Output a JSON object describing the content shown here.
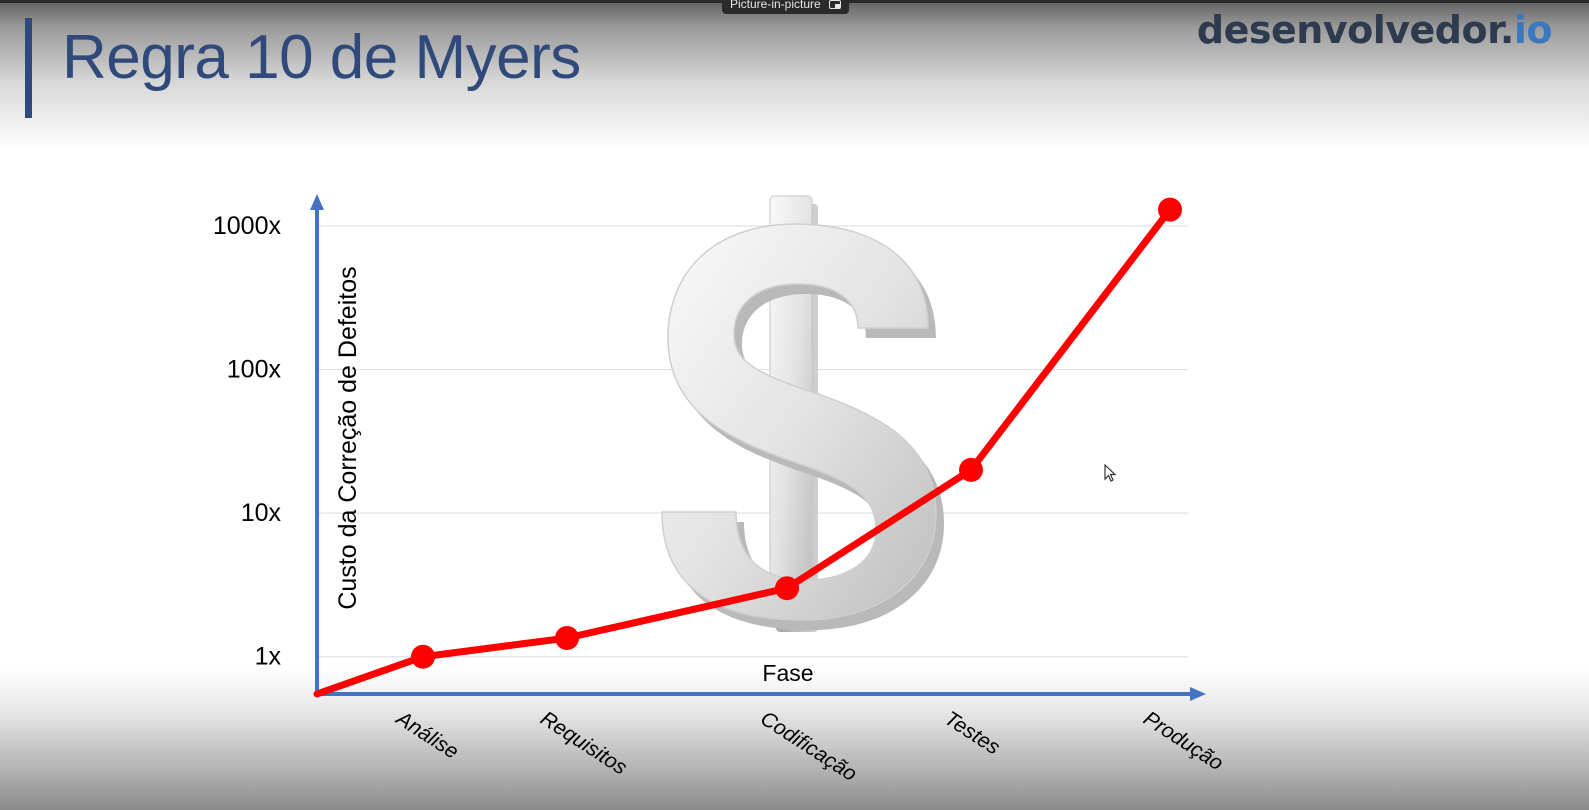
{
  "window": {
    "pip_label": "Picture-in-picture"
  },
  "slide": {
    "title": "Regra 10 de Myers",
    "brand_main": "desenvolvedor.",
    "brand_suffix": "io",
    "colors": {
      "title": "#2f4a7a",
      "axis": "#4472c4",
      "series": "#ff0000",
      "brand": "#2e3a4d",
      "brand_accent": "#3a78c0"
    },
    "icons": [
      "dollar-sign-icon",
      "mouse-cursor-icon",
      "picture-in-picture-icon"
    ]
  },
  "chart_data": {
    "type": "line",
    "xlabel": "Fase",
    "ylabel": "Custo da Correção de Defeitos",
    "categories": [
      "Análise",
      "Requisitos",
      "Codificação",
      "Testes",
      "Produção"
    ],
    "y_scale": "log",
    "y_ticks": [
      {
        "value": 1,
        "label": "1x"
      },
      {
        "value": 10,
        "label": "10x"
      },
      {
        "value": 100,
        "label": "100x"
      },
      {
        "value": 1000,
        "label": "1000x"
      }
    ],
    "ylim": [
      0.55,
      1400
    ],
    "grid": true,
    "series": [
      {
        "color": "#ff0000",
        "origin": 0.55,
        "values": [
          1,
          1.35,
          3,
          20,
          1300
        ]
      }
    ]
  }
}
